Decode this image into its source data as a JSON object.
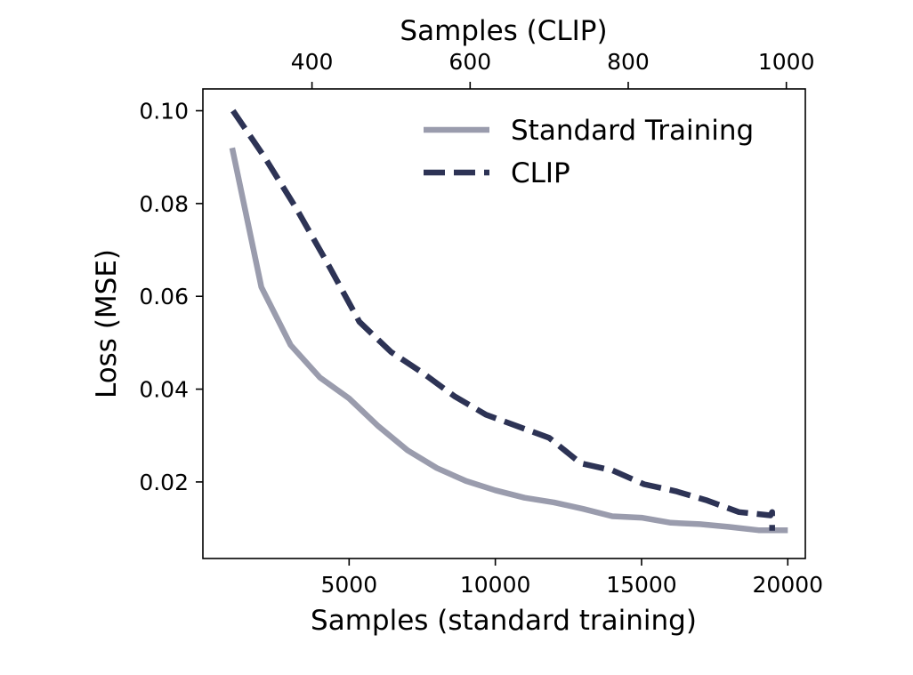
{
  "chart_data": {
    "type": "line",
    "xlabel": "Samples (standard training)",
    "x2label": "Samples (CLIP)",
    "ylabel": "Loss (MSE)",
    "xlim": [
      0,
      20600
    ],
    "x2lim": [
      262,
      1024
    ],
    "ylim": [
      0.0035,
      0.1047
    ],
    "xticks": [
      5000,
      10000,
      15000,
      20000
    ],
    "x2ticks": [
      400,
      600,
      800,
      1000
    ],
    "yticks": [
      0.02,
      0.04,
      0.06,
      0.08,
      0.1
    ],
    "ytick_labels": [
      "0.02",
      "0.04",
      "0.06",
      "0.08",
      "0.10"
    ],
    "grid": false,
    "legend_position": "top-right",
    "series": [
      {
        "name": "Standard Training",
        "axis": "bottom",
        "color": "#9a9cad",
        "style": "solid",
        "x": [
          1000,
          2000,
          3000,
          4000,
          5000,
          6000,
          7000,
          8000,
          9000,
          10000,
          11000,
          12000,
          13000,
          14000,
          15000,
          16000,
          17000,
          18000,
          19000,
          20000
        ],
        "y": [
          0.092,
          0.062,
          0.0495,
          0.0425,
          0.038,
          0.032,
          0.0268,
          0.023,
          0.0202,
          0.0182,
          0.0166,
          0.0156,
          0.0142,
          0.0126,
          0.0123,
          0.0112,
          0.0109,
          0.0103,
          0.0096,
          0.0096
        ]
      },
      {
        "name": "CLIP",
        "axis": "top",
        "color": "#2d3355",
        "style": "dashed",
        "x": [
          300,
          340,
          380,
          420,
          460,
          500,
          540,
          580,
          620,
          660,
          700,
          740,
          780,
          820,
          860,
          900,
          940,
          980,
          982,
          982
        ],
        "y": [
          0.1,
          0.09,
          0.079,
          0.067,
          0.0545,
          0.048,
          0.0435,
          0.0385,
          0.0345,
          0.032,
          0.0295,
          0.024,
          0.0225,
          0.0195,
          0.018,
          0.016,
          0.0135,
          0.0128,
          0.0135,
          0.0095
        ]
      }
    ]
  }
}
